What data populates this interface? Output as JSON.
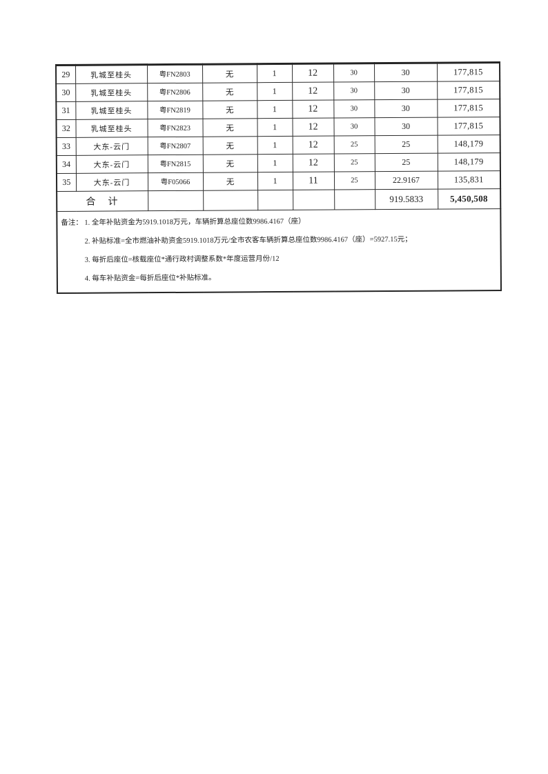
{
  "page": {
    "background": "#ffffff",
    "ink": "#1f1f1f",
    "border_color": "#2b2b2b"
  },
  "table": {
    "rows": [
      [
        "29",
        "乳城至桂头",
        "粤FN2803",
        "无",
        "1",
        "12",
        "30",
        "30",
        "177,815"
      ],
      [
        "30",
        "乳城至桂头",
        "粤FN2806",
        "无",
        "1",
        "12",
        "30",
        "30",
        "177,815"
      ],
      [
        "31",
        "乳城至桂头",
        "粤FN2819",
        "无",
        "1",
        "12",
        "30",
        "30",
        "177,815"
      ],
      [
        "32",
        "乳城至桂头",
        "粤FN2823",
        "无",
        "1",
        "12",
        "30",
        "30",
        "177,815"
      ],
      [
        "33",
        "大东-云门",
        "粤FN2807",
        "无",
        "1",
        "12",
        "25",
        "25",
        "148,179"
      ],
      [
        "34",
        "大东-云门",
        "粤FN2815",
        "无",
        "1",
        "12",
        "25",
        "25",
        "148,179"
      ],
      [
        "35",
        "大东-云门",
        "粤F05066",
        "无",
        "1",
        "11",
        "25",
        "22.9167",
        "135,831"
      ]
    ],
    "total": {
      "label": "合　计",
      "folded_seats": "919.5833",
      "subsidy_total": "5,450,508"
    }
  },
  "notes": {
    "label": "备注：",
    "items": [
      "1. 全年补贴资金为5919.1018万元，车辆折算总座位数9986.4167（座）",
      "2. 补贴标准=全市燃油补助资金5919.1018万元/全市农客车辆折算总座位数9986.4167（座）=5927.15元；",
      "3. 每折后座位=核载座位*通行政村调整系数*年度运营月份/12",
      "4. 每车补贴资金=每折后座位*补贴标准。"
    ]
  }
}
